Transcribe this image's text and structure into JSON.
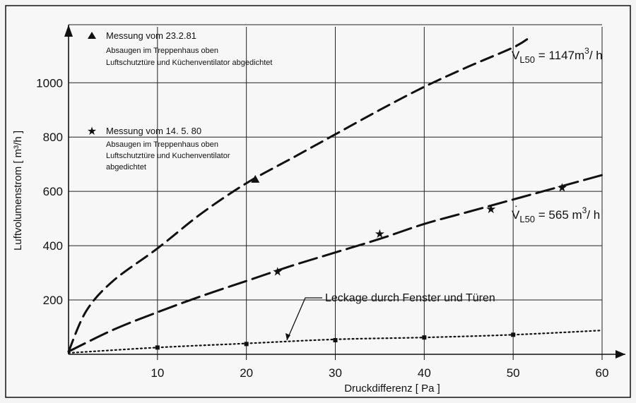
{
  "chart_data": {
    "type": "line",
    "xlabel": "Druckdifferenz  [ Pa ]",
    "ylabel": "Luftvolumenstrom  [ m³/h ]",
    "xlim": [
      0,
      60
    ],
    "ylim": [
      0,
      1180
    ],
    "x_ticks": [
      10,
      20,
      30,
      40,
      50,
      60
    ],
    "y_ticks": [
      200,
      400,
      600,
      800,
      1000
    ],
    "grid": true,
    "series": [
      {
        "style": "dashed",
        "marker": "triangle",
        "x": [
          0,
          2,
          5,
          10,
          15,
          20,
          25,
          30,
          35,
          40,
          45,
          50,
          52
        ],
        "y": [
          10,
          160,
          270,
          390,
          520,
          630,
          720,
          810,
          900,
          985,
          1060,
          1130,
          1170
        ],
        "marker_points": [
          {
            "x": 21,
            "y": 645
          }
        ]
      },
      {
        "style": "dashed",
        "marker": "star",
        "x": [
          0,
          5,
          10,
          15,
          20,
          25,
          30,
          35,
          40,
          45,
          50,
          55,
          60
        ],
        "y": [
          10,
          90,
          155,
          215,
          270,
          325,
          375,
          425,
          480,
          525,
          570,
          615,
          660
        ],
        "marker_points": [
          {
            "x": 23.5,
            "y": 305
          },
          {
            "x": 35,
            "y": 445
          },
          {
            "x": 47.5,
            "y": 535
          },
          {
            "x": 55.5,
            "y": 615
          }
        ]
      },
      {
        "style": "dotted",
        "marker": "square",
        "x": [
          0,
          10,
          20,
          30,
          40,
          50,
          60
        ],
        "y": [
          5,
          25,
          40,
          55,
          62,
          72,
          88
        ],
        "marker_points": [
          {
            "x": 10,
            "y": 25
          },
          {
            "x": 20,
            "y": 38
          },
          {
            "x": 30,
            "y": 52
          },
          {
            "x": 40,
            "y": 62
          },
          {
            "x": 50,
            "y": 72
          }
        ]
      }
    ],
    "annotations": {
      "triangle_title": "Messung vom 23.2.81",
      "triangle_line1": "Absaugen im Treppenhaus oben",
      "triangle_line2": "Luftschutztüre und Küchenventilator abgedichtet",
      "star_title": "Messung vom  14. 5. 80",
      "star_line1": "Absaugen im Treppenhaus oben",
      "star_line2": "Luftschutztüre und Kuchenventilator",
      "star_line3": "abgedichtet",
      "formula1_value": " = 1147m",
      "formula1_unit": "/ h",
      "formula2_value": " =   565 m",
      "formula2_unit": "/ h",
      "formula_symbol": "V",
      "formula_sub": "L50",
      "formula_sup": "3",
      "leak_label": "Leckage durch Fenster und Türen"
    }
  }
}
